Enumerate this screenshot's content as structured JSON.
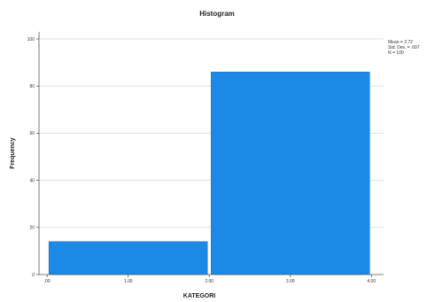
{
  "chart_data": {
    "type": "bar",
    "title": "Histogram",
    "xlabel": "KATEGORI",
    "ylabel": "Frequency",
    "bins": [
      {
        "from": 0.0,
        "to": 2.0,
        "value": 14
      },
      {
        "from": 2.0,
        "to": 4.0,
        "value": 86
      }
    ],
    "x_ticks": [
      {
        "value": 0,
        "label": ".00"
      },
      {
        "value": 1,
        "label": "1.00"
      },
      {
        "value": 2,
        "label": "2.00"
      },
      {
        "value": 3,
        "label": "3.00"
      },
      {
        "value": 4,
        "label": "4.00"
      }
    ],
    "y_ticks": [
      {
        "value": 0,
        "label": "0"
      },
      {
        "value": 20,
        "label": "20"
      },
      {
        "value": 40,
        "label": "40"
      },
      {
        "value": 60,
        "label": "60"
      },
      {
        "value": 80,
        "label": "80"
      },
      {
        "value": 100,
        "label": "100"
      }
    ],
    "xlim": [
      -0.1,
      4.15
    ],
    "ylim": [
      0,
      103
    ],
    "grid": true,
    "bar_color": "#1a8ae6",
    "stats": [
      "Mean = 2.72",
      "Std. Dev. = .697",
      "N = 100"
    ]
  }
}
